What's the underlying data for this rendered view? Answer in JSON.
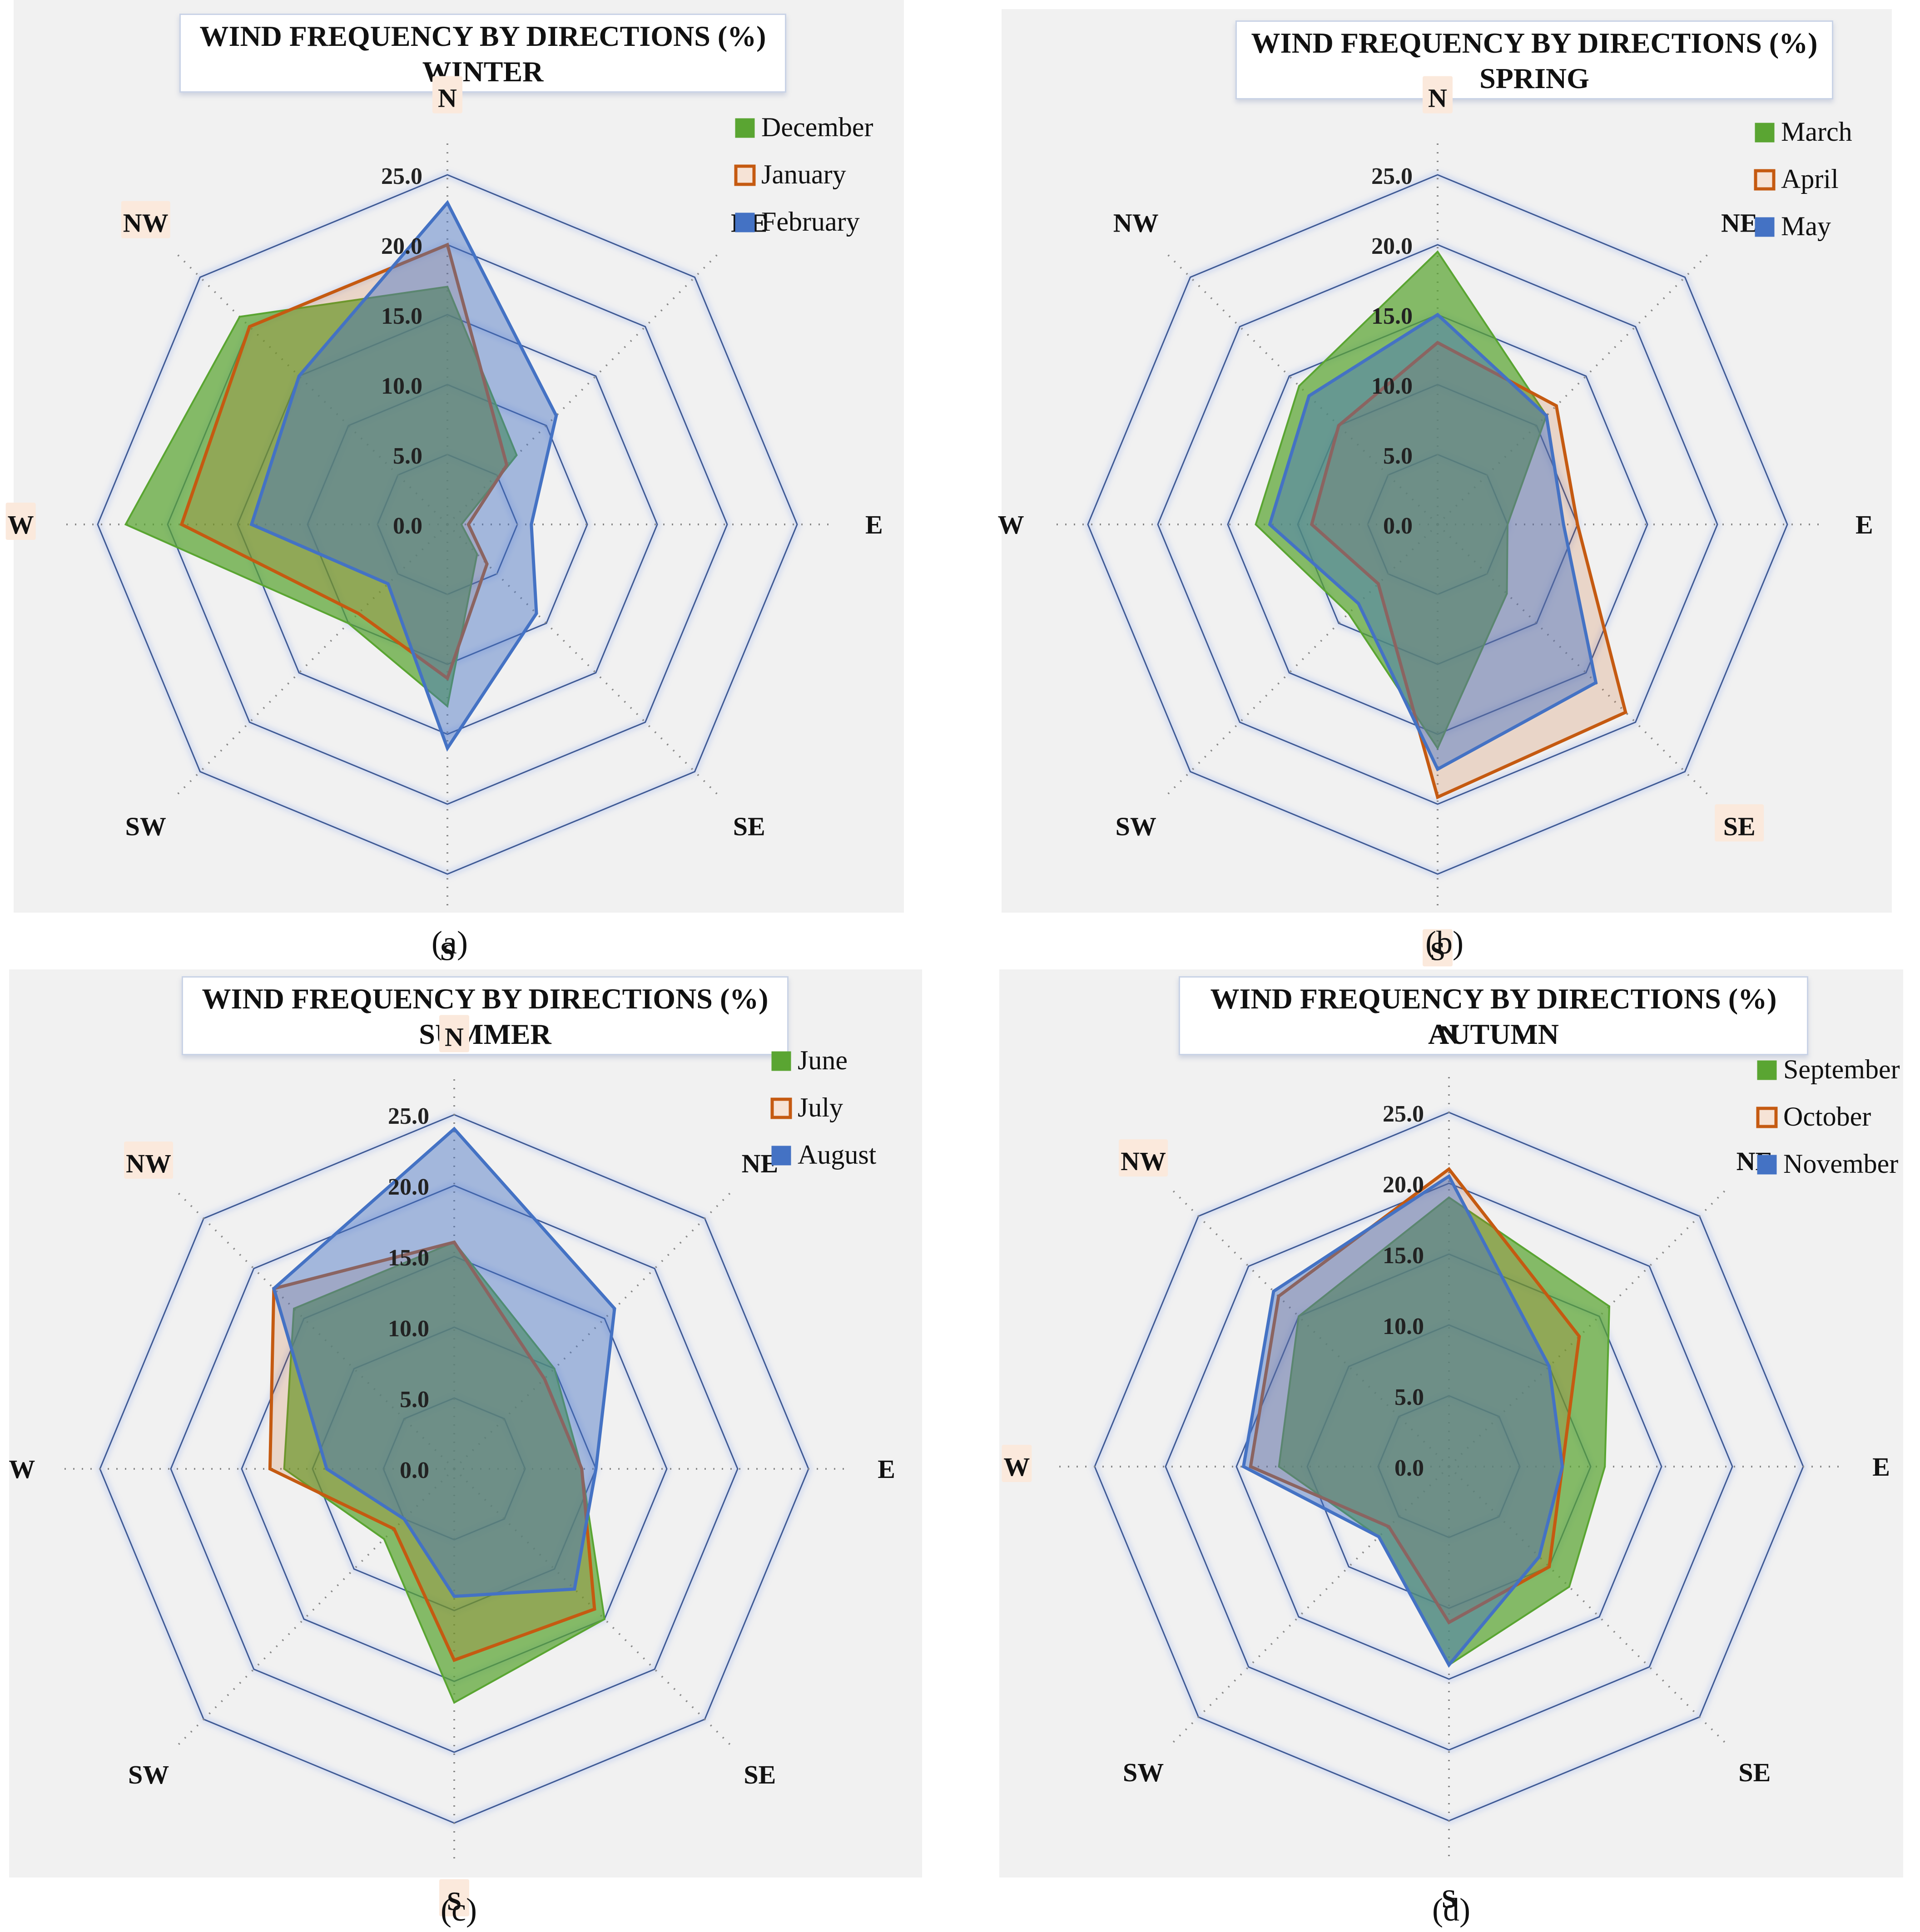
{
  "directions": [
    "N",
    "NE",
    "E",
    "SE",
    "S",
    "SW",
    "W",
    "NW"
  ],
  "colors": {
    "green": "#5aa532",
    "orange": "#c55a11",
    "blue": "#4472c4"
  },
  "chart_data": [
    {
      "type": "radar",
      "title": "WIND FREQUENCY BY DIRECTIONS (%)",
      "subtitle": "WINTER",
      "caption": "(a)",
      "categories": [
        "N",
        "NE",
        "E",
        "SE",
        "S",
        "SW",
        "W",
        "NW"
      ],
      "highlighted": [
        "N",
        "NW",
        "W"
      ],
      "rlim": [
        0,
        25
      ],
      "ticks": [
        "0.0",
        "5.0",
        "10.0",
        "15.0",
        "20.0",
        "25.0"
      ],
      "series": [
        {
          "name": "December",
          "values": [
            17,
            7,
            1,
            3,
            13,
            10,
            23,
            21
          ]
        },
        {
          "name": "January",
          "values": [
            20,
            6,
            1.5,
            4,
            11,
            9,
            19,
            20
          ]
        },
        {
          "name": "February",
          "values": [
            23,
            11,
            6,
            9,
            16,
            6,
            14,
            15
          ]
        }
      ]
    },
    {
      "type": "radar",
      "title": "WIND FREQUENCY BY DIRECTIONS (%)",
      "subtitle": "SPRING",
      "caption": "(b)",
      "categories": [
        "N",
        "NE",
        "E",
        "SE",
        "S",
        "SW",
        "W",
        "NW"
      ],
      "highlighted": [
        "N",
        "SE",
        "S"
      ],
      "rlim": [
        0,
        25
      ],
      "ticks": [
        "0.0",
        "5.0",
        "10.0",
        "15.0",
        "20.0",
        "25.0"
      ],
      "series": [
        {
          "name": "March",
          "values": [
            19.5,
            11,
            5,
            7,
            16,
            9,
            13,
            14
          ]
        },
        {
          "name": "April",
          "values": [
            13,
            12,
            10,
            19,
            19.5,
            6,
            9,
            10
          ]
        },
        {
          "name": "May",
          "values": [
            15,
            11,
            9,
            16,
            17.5,
            8,
            12,
            13
          ]
        }
      ]
    },
    {
      "type": "radar",
      "title": "WIND FREQUENCY BY DIRECTIONS (%)",
      "subtitle": "SUMMER",
      "caption": "(c)",
      "categories": [
        "N",
        "NE",
        "E",
        "SE",
        "S",
        "SW",
        "W",
        "NW"
      ],
      "highlighted": [
        "N",
        "NW",
        "S"
      ],
      "rlim": [
        0,
        25
      ],
      "ticks": [
        "0.0",
        "5.0",
        "10.0",
        "15.0",
        "20.0",
        "25.0"
      ],
      "series": [
        {
          "name": "June",
          "values": [
            16,
            10,
            9,
            15,
            16.5,
            7,
            12,
            16
          ]
        },
        {
          "name": "July",
          "values": [
            16,
            9,
            9,
            14,
            13.5,
            6,
            13,
            18
          ]
        },
        {
          "name": "August",
          "values": [
            24,
            16,
            10,
            12,
            9,
            5,
            9,
            18
          ]
        }
      ]
    },
    {
      "type": "radar",
      "title": "WIND FREQUENCY BY DIRECTIONS (%)",
      "subtitle": "AUTUMN",
      "caption": "(d)",
      "categories": [
        "N",
        "NE",
        "E",
        "SE",
        "S",
        "SW",
        "W",
        "NW"
      ],
      "highlighted": [
        "NW",
        "W"
      ],
      "rlim": [
        0,
        25
      ],
      "ticks": [
        "0.0",
        "5.0",
        "10.0",
        "15.0",
        "20.0",
        "25.0"
      ],
      "series": [
        {
          "name": "September",
          "values": [
            19,
            16,
            11,
            12,
            14,
            7,
            12,
            15
          ]
        },
        {
          "name": "October",
          "values": [
            21,
            13,
            8,
            10,
            11,
            6,
            14,
            17
          ]
        },
        {
          "name": "November",
          "values": [
            20.5,
            10,
            8,
            9,
            14,
            7,
            14.5,
            17.5
          ]
        }
      ]
    }
  ]
}
